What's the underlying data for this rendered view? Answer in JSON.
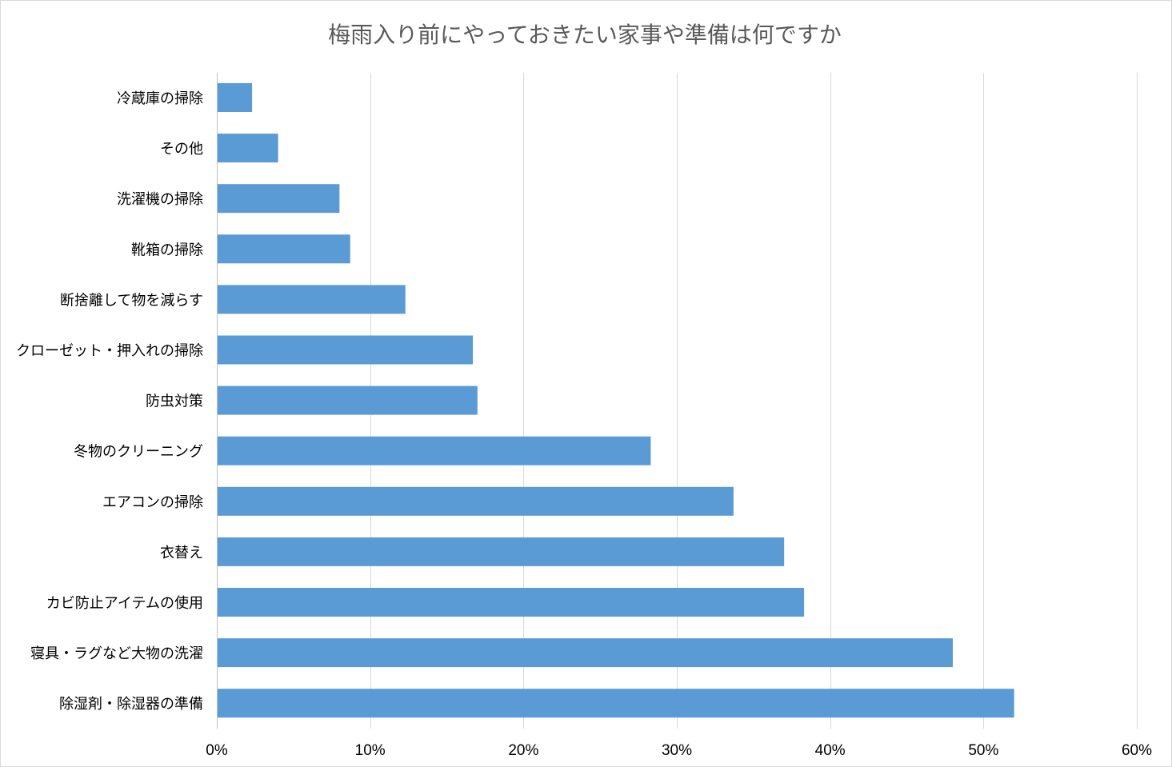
{
  "chart_data": {
    "type": "bar",
    "orientation": "horizontal",
    "title": "梅雨入り前にやっておきたい家事や準備は何ですか",
    "xlabel": "",
    "ylabel": "",
    "categories": [
      "冷蔵庫の掃除",
      "その他",
      "洗濯機の掃除",
      "靴箱の掃除",
      "断捨離して物を減らす",
      "クローゼット・押入れの掃除",
      "防虫対策",
      "冬物のクリーニング",
      "エアコンの掃除",
      "衣替え",
      "カビ防止アイテムの使用",
      "寝具・ラグなど大物の洗濯",
      "除湿剤・除湿器の準備"
    ],
    "values": [
      2.3,
      4.0,
      8.0,
      8.7,
      12.3,
      16.7,
      17.0,
      28.3,
      33.7,
      37.0,
      38.3,
      48.0,
      52.0
    ],
    "xlim": [
      0,
      60
    ],
    "ticks": [
      0,
      10,
      20,
      30,
      40,
      50,
      60
    ],
    "tick_labels": [
      "0%",
      "10%",
      "20%",
      "30%",
      "40%",
      "50%",
      "60%"
    ],
    "grid": true,
    "legend": "none",
    "bar_color": "#5b9bd5"
  }
}
